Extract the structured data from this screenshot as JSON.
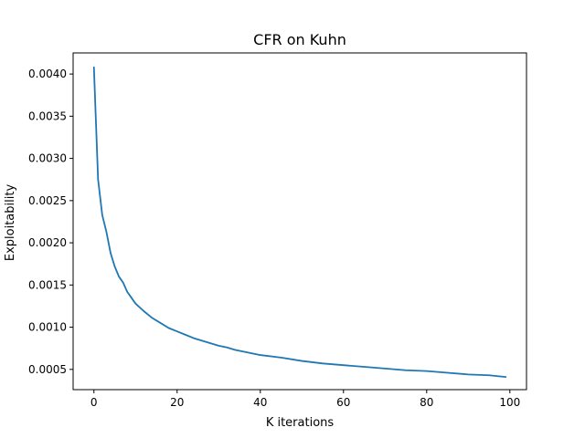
{
  "chart_data": {
    "type": "line",
    "title": "CFR on Kuhn",
    "xlabel": "K iterations",
    "ylabel": "Exploitability",
    "xlim": [
      -5,
      104
    ],
    "ylim": [
      0.00026,
      0.00425
    ],
    "grid": false,
    "x_ticks": [
      0,
      20,
      40,
      60,
      80,
      100
    ],
    "x_tick_labels": [
      "0",
      "20",
      "40",
      "60",
      "80",
      "100"
    ],
    "y_ticks": [
      0.0005,
      0.001,
      0.0015,
      0.002,
      0.0025,
      0.003,
      0.0035,
      0.004
    ],
    "y_tick_labels": [
      "0.0005",
      "0.0010",
      "0.0015",
      "0.0020",
      "0.0025",
      "0.0030",
      "0.0035",
      "0.0040"
    ],
    "colors": {
      "line": "#1f77b4",
      "axes": "#000000",
      "background": "#ffffff"
    },
    "series": [
      {
        "x": [
          0,
          1,
          2,
          3,
          4,
          5,
          6,
          7,
          8,
          9,
          10,
          12,
          14,
          16,
          18,
          20,
          22,
          24,
          26,
          28,
          30,
          32,
          34,
          36,
          38,
          40,
          45,
          50,
          55,
          60,
          65,
          70,
          75,
          80,
          85,
          90,
          95,
          99
        ],
        "values": [
          0.00408,
          0.00275,
          0.00233,
          0.00213,
          0.00188,
          0.00172,
          0.0016,
          0.00153,
          0.00142,
          0.00135,
          0.00128,
          0.00119,
          0.00111,
          0.00105,
          0.00099,
          0.00095,
          0.00091,
          0.00087,
          0.00084,
          0.00081,
          0.00078,
          0.00076,
          0.00073,
          0.00071,
          0.00069,
          0.00067,
          0.00064,
          0.0006,
          0.00057,
          0.00055,
          0.00053,
          0.00051,
          0.00049,
          0.00048,
          0.00046,
          0.00044,
          0.00043,
          0.00041
        ]
      }
    ]
  }
}
